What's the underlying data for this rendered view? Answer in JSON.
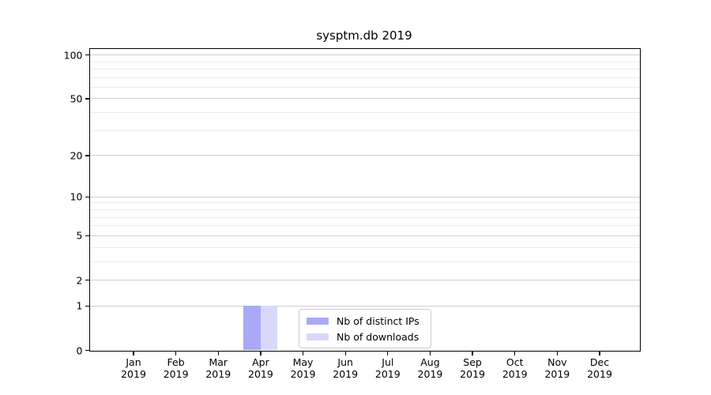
{
  "chart_data": {
    "type": "bar",
    "title": "sysptm.db 2019",
    "categories": [
      "Jan",
      "Feb",
      "Mar",
      "Apr",
      "May",
      "Jun",
      "Jul",
      "Aug",
      "Sep",
      "Oct",
      "Nov",
      "Dec"
    ],
    "category_year": "2019",
    "series": [
      {
        "name": "Nb of distinct IPs",
        "color": "#a9a9f6",
        "values": [
          0,
          0,
          0,
          1,
          0,
          0,
          0,
          0,
          0,
          0,
          0,
          0
        ]
      },
      {
        "name": "Nb of downloads",
        "color": "#d8d8fa",
        "values": [
          0,
          0,
          0,
          1,
          0,
          0,
          0,
          0,
          0,
          0,
          0,
          0
        ]
      }
    ],
    "xlabel": "",
    "ylabel": "",
    "y_scale": "log1p",
    "y_major_ticks": [
      0,
      1,
      2,
      5,
      10,
      20,
      50,
      100
    ],
    "y_minor_ticks": [
      3,
      4,
      6,
      7,
      8,
      9,
      30,
      40,
      60,
      70,
      80,
      90
    ],
    "ylim": [
      0,
      110
    ],
    "grid": "horizontal-only",
    "legend": {
      "position": "lower-center-inside",
      "entries": [
        "Nb of distinct IPs",
        "Nb of downloads"
      ]
    },
    "colors": {
      "major_grid": "#cfcfcf",
      "minor_grid": "#ececec",
      "spine": "#000000",
      "text": "#000000",
      "legend_border": "#cccccc",
      "legend_background": "#ffffff",
      "figure_background": "#ffffff"
    }
  }
}
